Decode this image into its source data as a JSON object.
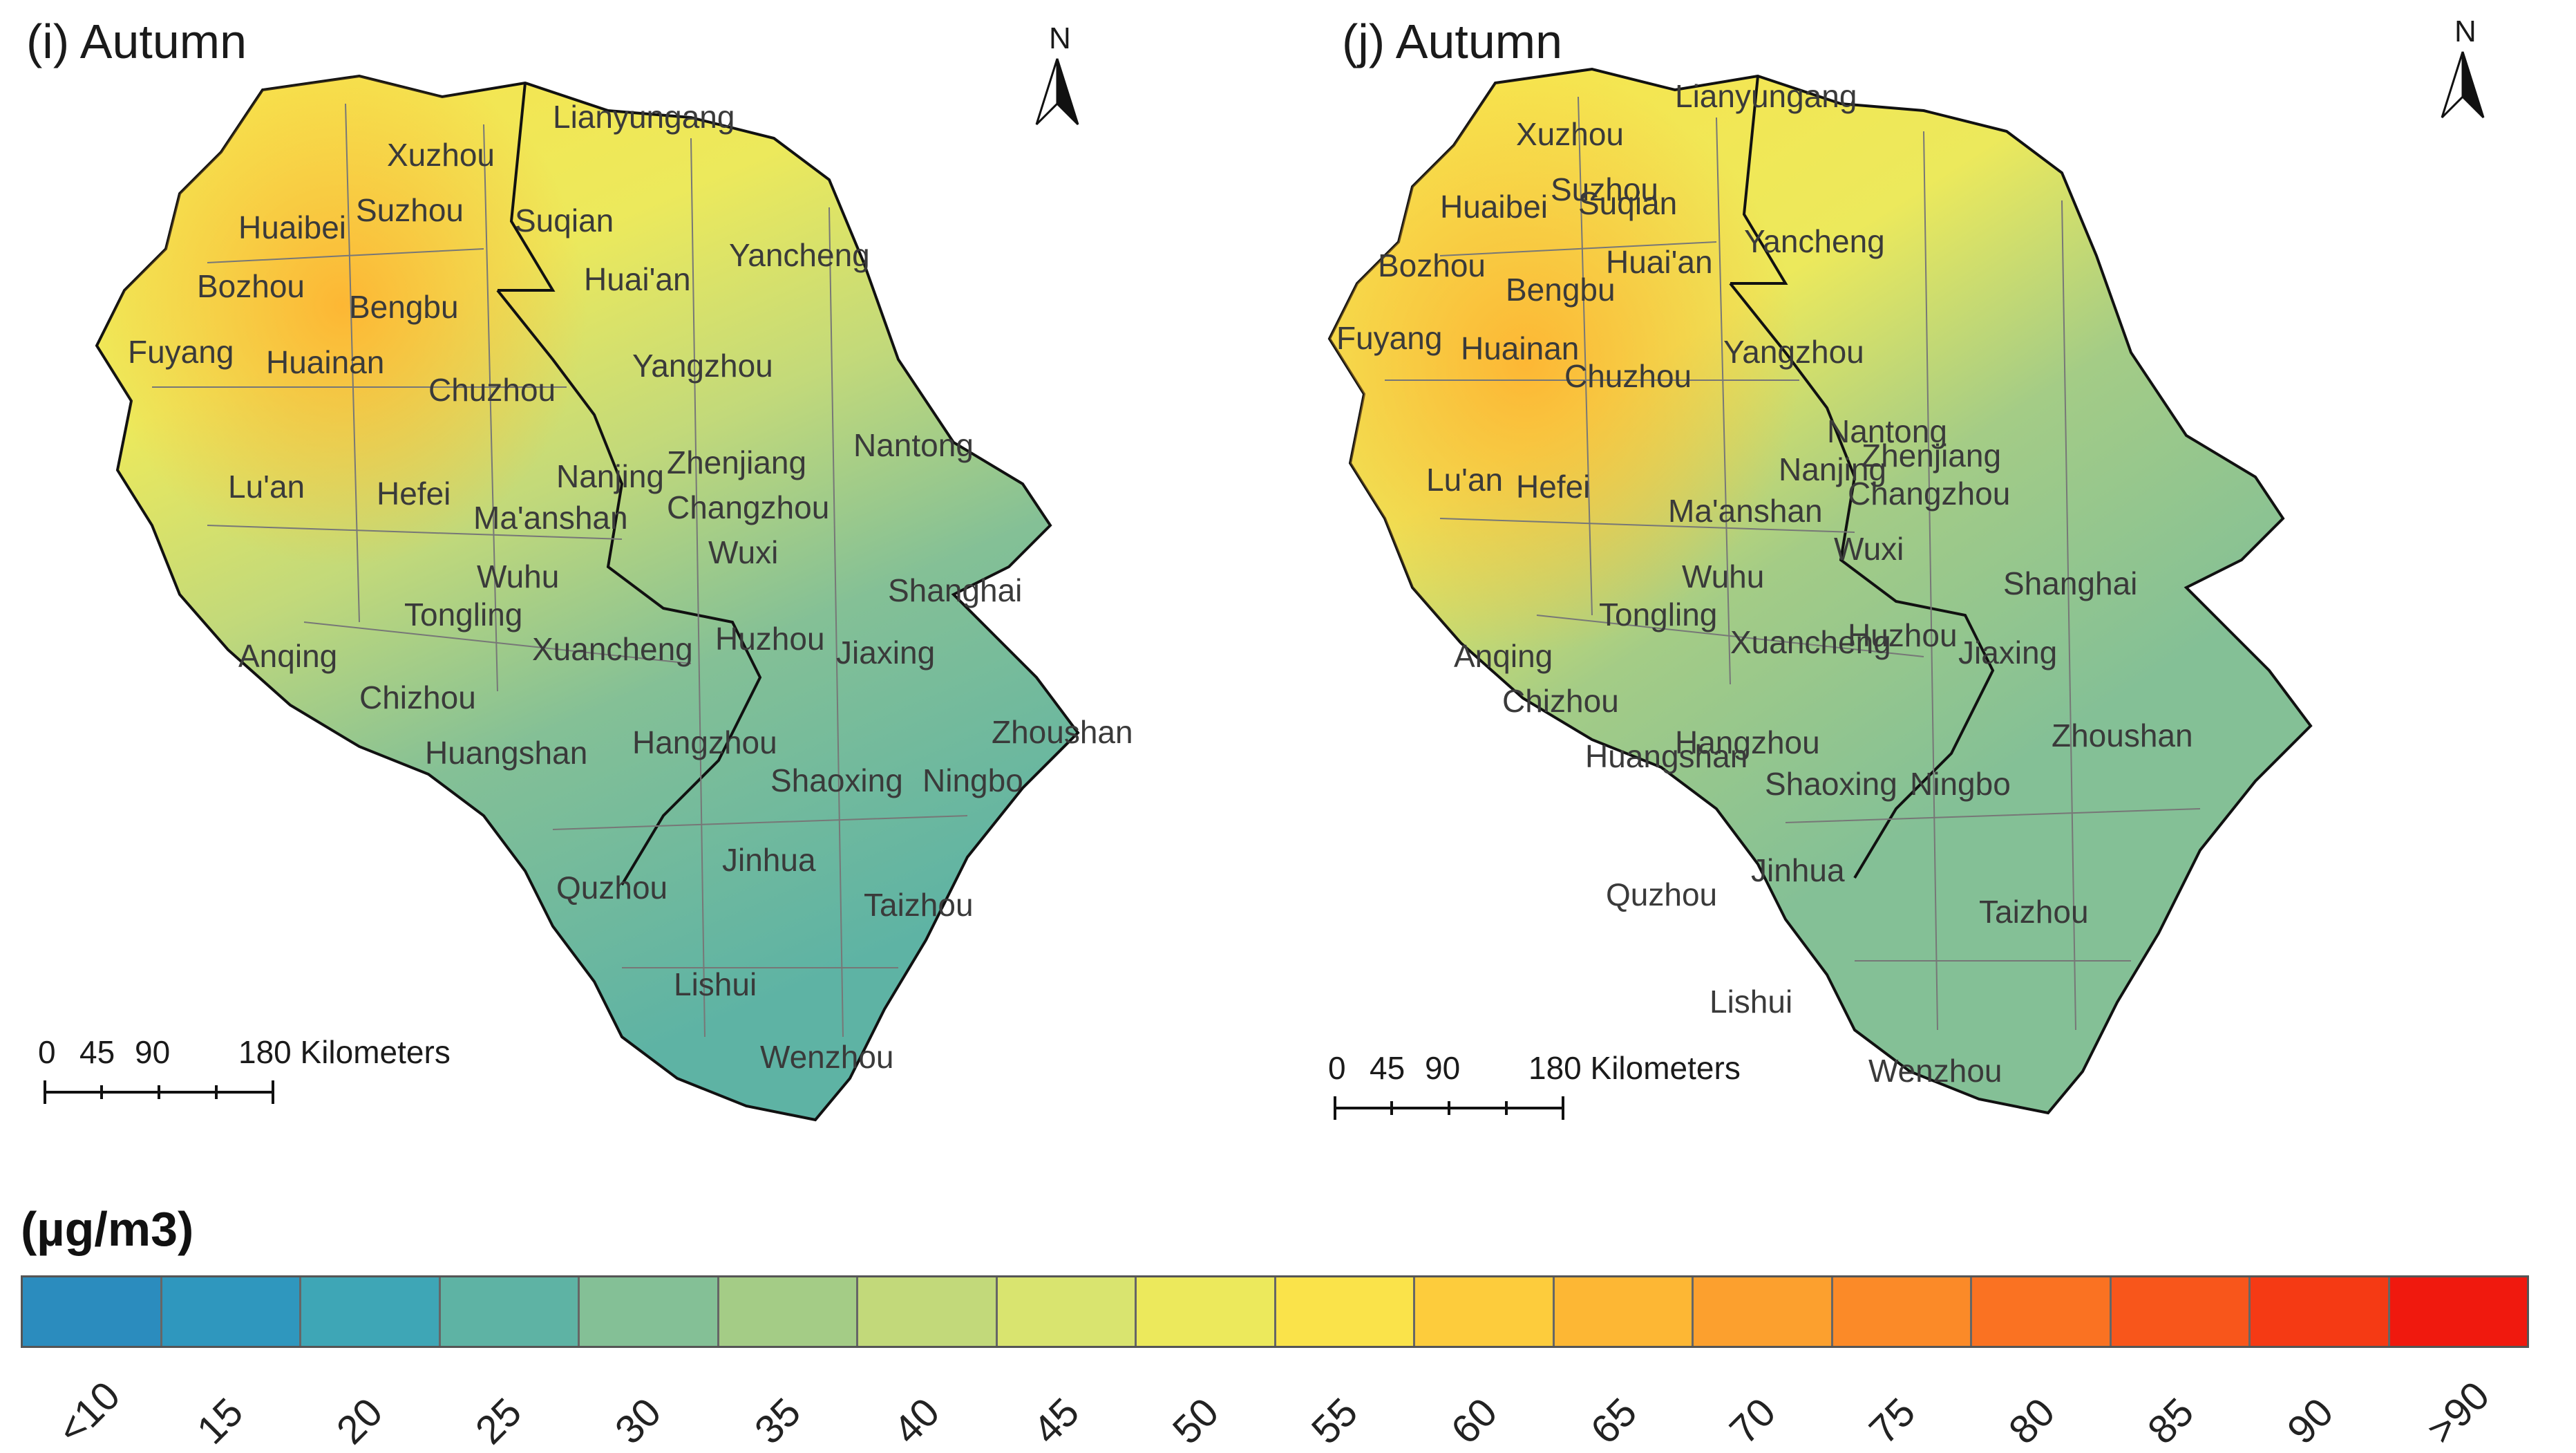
{
  "panels": [
    {
      "title": "(i) Autumn",
      "north": "N",
      "scale": {
        "ticks": [
          "0",
          "45",
          "90",
          "180 Kilometers"
        ]
      },
      "cities": [
        "Xuzhou",
        "Lianyungang",
        "Huaibei",
        "Suzhou",
        "Suqian",
        "Bozhou",
        "Bengbu",
        "Huai'an",
        "Yancheng",
        "Fuyang",
        "Huainan",
        "Chuzhou",
        "Yangzhou",
        "Nantong",
        "Lu'an",
        "Hefei",
        "Nanjing",
        "Zhenjiang",
        "Ma'anshan",
        "Changzhou",
        "Wuxi",
        "Wuhu",
        "Tongling",
        "Shanghai",
        "Anqing",
        "Xuancheng",
        "Huzhou",
        "Jiaxing",
        "Chizhou",
        "Huangshan",
        "Hangzhou",
        "Zhoushan",
        "Shaoxing",
        "Ningbo",
        "Jinhua",
        "Quzhou",
        "Taizhou",
        "Lishui",
        "Wenzhou"
      ]
    },
    {
      "title": "(j) Autumn",
      "north": "N",
      "scale": {
        "ticks": [
          "0",
          "45",
          "90",
          "180 Kilometers"
        ]
      },
      "cities": [
        "Xuzhou",
        "Lianyungang",
        "Huaibei",
        "Suzhou",
        "Suqian",
        "Bozhou",
        "Bengbu",
        "Huai'an",
        "Yancheng",
        "Fuyang",
        "Huainan",
        "Chuzhou",
        "Yangzhou",
        "Nantong",
        "Lu'an",
        "Hefei",
        "Nanjing",
        "Zhenjiang",
        "Ma'anshan",
        "Changzhou",
        "Wuxi",
        "Wuhu",
        "Tongling",
        "Shanghai",
        "Anqing",
        "Xuancheng",
        "Huzhou",
        "Jiaxing",
        "Chizhou",
        "Huangshan",
        "Hangzhou",
        "Zhoushan",
        "Shaoxing",
        "Ningbo",
        "Jinhua",
        "Quzhou",
        "Taizhou",
        "Lishui",
        "Wenzhou"
      ]
    }
  ],
  "legend": {
    "unit": "(µg/m3)",
    "classes": [
      {
        "label": "<10",
        "color": "#2b8cbe"
      },
      {
        "label": "15",
        "color": "#2f97be"
      },
      {
        "label": "20",
        "color": "#3ea6b6"
      },
      {
        "label": "25",
        "color": "#5eb3a4"
      },
      {
        "label": "30",
        "color": "#84c096"
      },
      {
        "label": "35",
        "color": "#a4cc86"
      },
      {
        "label": "40",
        "color": "#c2d97a"
      },
      {
        "label": "45",
        "color": "#d9e46f"
      },
      {
        "label": "50",
        "color": "#ece95c"
      },
      {
        "label": "55",
        "color": "#fae34a"
      },
      {
        "label": "60",
        "color": "#fdcc3c"
      },
      {
        "label": "65",
        "color": "#fdb734"
      },
      {
        "label": "70",
        "color": "#fca02e"
      },
      {
        "label": "75",
        "color": "#fb8a28"
      },
      {
        "label": "80",
        "color": "#fa7222"
      },
      {
        "label": "85",
        "color": "#f8561b"
      },
      {
        "label": "90",
        "color": "#f53a14"
      },
      {
        "label": ">90",
        "color": "#f0190e"
      }
    ]
  }
}
